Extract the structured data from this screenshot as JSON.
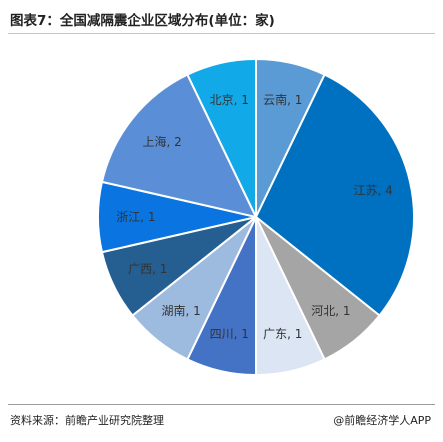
{
  "title": "图表7：全国减隔震企业区域分布(单位：家)",
  "source": "资料来源：前瞻产业研究院整理",
  "brand": "@前瞻经济学人APP",
  "chart_data": {
    "type": "pie",
    "title": "图表7：全国减隔震企业区域分布(单位：家)",
    "unit": "家",
    "slices": [
      {
        "label": "云南",
        "value": 1,
        "color": "#5b9bd5",
        "text": "云南, 1"
      },
      {
        "label": "江苏",
        "value": 4,
        "color": "#0070c0",
        "text": "江苏, 4"
      },
      {
        "label": "河北",
        "value": 1,
        "color": "#a5a5a5",
        "text": "河北, 1"
      },
      {
        "label": "广东",
        "value": 1,
        "color": "#dbe5f3",
        "text": "广东, 1"
      },
      {
        "label": "四川",
        "value": 1,
        "color": "#4472c4",
        "text": "四川, 1"
      },
      {
        "label": "湖南",
        "value": 1,
        "color": "#9dbadf",
        "text": "湖南, 1"
      },
      {
        "label": "广西",
        "value": 1,
        "color": "#255e91",
        "text": "广西, 1"
      },
      {
        "label": "浙江",
        "value": 1,
        "color": "#0a74e0",
        "text": "浙江, 1"
      },
      {
        "label": "上海",
        "value": 2,
        "color": "#5a8fd8",
        "text": "上海, 2"
      },
      {
        "label": "北京",
        "value": 1,
        "color": "#12a9e8",
        "text": "北京, 1"
      }
    ]
  }
}
